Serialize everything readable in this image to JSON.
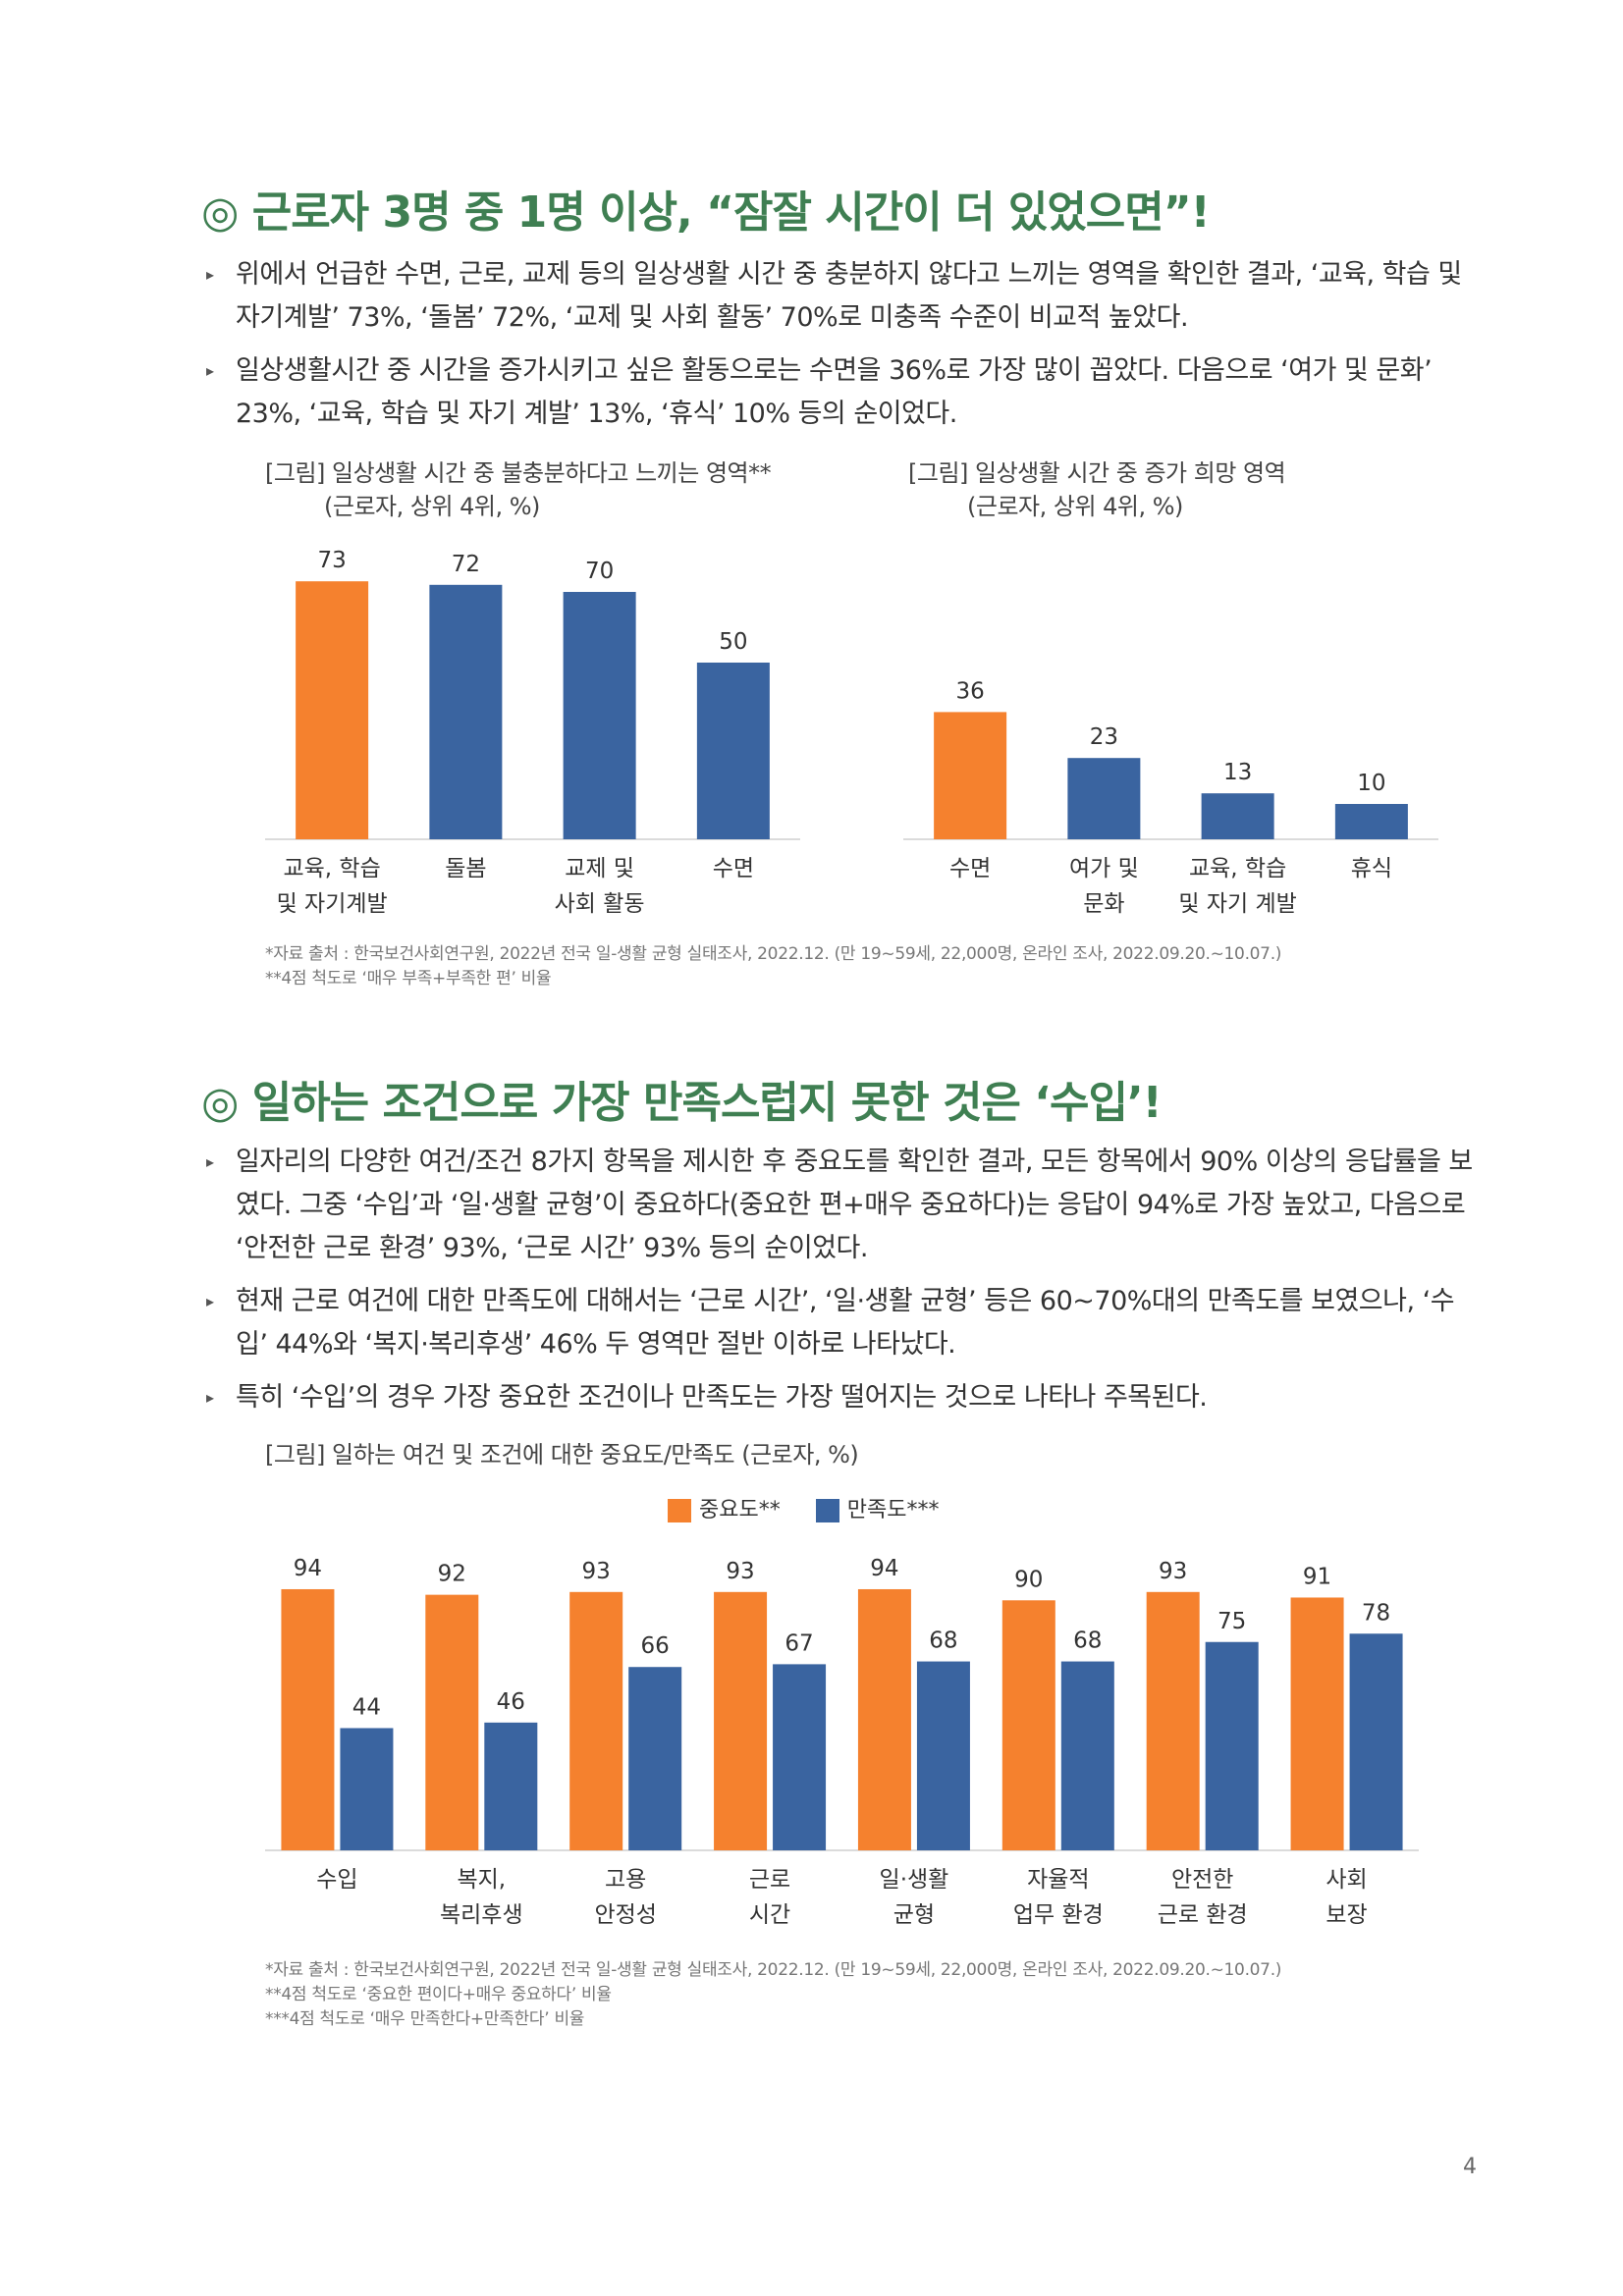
{
  "colors": {
    "heading": "#3f7f52",
    "orange": "#f5812e",
    "blue": "#3a64a0"
  },
  "section1": {
    "heading": "◎ 근로자 3명 중 1명 이상, “잠잘 시간이 더 있었으면”!",
    "bullets": [
      "위에서 언급한 수면, 근로, 교제 등의 일상생활 시간 중 충분하지 않다고 느끼는 영역을 확인한 결과, ‘교육, 학습 및 자기계발’ 73%, ‘돌봄’ 72%, ‘교제 및 사회 활동’ 70%로 미충족 수준이 비교적 높았다.",
      "일상생활시간 중 시간을 증가시키고 싶은 활동으로는 수면을 36%로 가장 많이 꼽았다. 다음으로 ‘여가 및 문화’ 23%, ‘교육, 학습 및 자기 계발’ 13%, ‘휴식’ 10% 등의 순이었다."
    ],
    "chart_left_caption": "[그림] 일상생활 시간 중 불충분하다고 느끼는 영역**",
    "chart_left_subcaption": "(근로자, 상위 4위, %)",
    "chart_right_caption": "[그림] 일상생활 시간 중 증가 희망 영역",
    "chart_right_subcaption": "(근로자, 상위 4위, %)",
    "notes": [
      "*자료 출처 : 한국보건사회연구원, 2022년 전국 일-생활 균형 실태조사, 2022.12. (만 19~59세, 22,000명, 온라인 조사, 2022.09.20.~10.07.)",
      "**4점 척도로 ‘매우 부족+부족한 편’ 비율"
    ]
  },
  "section2": {
    "heading": "◎ 일하는 조건으로 가장 만족스럽지 못한 것은 ‘수입’!",
    "bullets": [
      "일자리의 다양한 여건/조건 8가지 항목을 제시한 후 중요도를 확인한 결과, 모든 항목에서 90% 이상의 응답률을 보였다. 그중 ‘수입’과 ‘일·생활 균형’이 중요하다(중요한 편+매우 중요하다)는 응답이 94%로 가장 높았고, 다음으로 ‘안전한 근로 환경’ 93%, ‘근로 시간’ 93% 등의 순이었다.",
      "현재 근로 여건에 대한 만족도에 대해서는 ‘근로 시간’, ‘일·생활 균형’ 등은 60~70%대의 만족도를 보였으나, ‘수입’ 44%와 ‘복지·복리후생’ 46% 두 영역만 절반 이하로 나타났다.",
      "특히 ‘수입’의 경우 가장 중요한 조건이나 만족도는 가장 떨어지는 것으로 나타나 주목된다."
    ],
    "chart_caption": "[그림] 일하는 여건 및 조건에 대한 중요도/만족도 (근로자, %)",
    "notes": [
      "*자료 출처 : 한국보건사회연구원, 2022년 전국 일-생활 균형 실태조사, 2022.12. (만 19~59세, 22,000명, 온라인 조사, 2022.09.20.~10.07.)",
      "**4점 척도로 ‘중요한 편이다+매우 중요하다’ 비율",
      "***4점 척도로 ‘매우 만족한다+만족한다’ 비율"
    ]
  },
  "page_number": "4",
  "chart_data": [
    {
      "type": "bar",
      "categories": [
        [
          "교육, 학습",
          "및 자기계발"
        ],
        [
          "돌봄"
        ],
        [
          "교제 및",
          "사회 활동"
        ],
        [
          "수면"
        ]
      ],
      "values": [
        73,
        72,
        70,
        50
      ],
      "bar_colors": [
        "#f5812e",
        "#3a64a0",
        "#3a64a0",
        "#3a64a0"
      ],
      "title": "[그림] 일상생활 시간 중 불충분하다고 느끼는 영역**",
      "ylim": [
        0,
        80
      ]
    },
    {
      "type": "bar",
      "categories": [
        [
          "수면"
        ],
        [
          "여가 및",
          "문화"
        ],
        [
          "교육, 학습",
          "및 자기 계발"
        ],
        [
          "휴식"
        ]
      ],
      "values": [
        36,
        23,
        13,
        10
      ],
      "bar_colors": [
        "#f5812e",
        "#3a64a0",
        "#3a64a0",
        "#3a64a0"
      ],
      "title": "[그림] 일상생활 시간 중 증가 희망 영역",
      "ylim": [
        0,
        80
      ]
    },
    {
      "type": "bar",
      "categories": [
        [
          "수입"
        ],
        [
          "복지,",
          "복리후생"
        ],
        [
          "고용",
          "안정성"
        ],
        [
          "근로",
          "시간"
        ],
        [
          "일·생활",
          "균형"
        ],
        [
          "자율적",
          "업무 환경"
        ],
        [
          "안전한",
          "근로 환경"
        ],
        [
          "사회",
          "보장"
        ]
      ],
      "series": [
        {
          "name": "중요도**",
          "color": "#f5812e",
          "values": [
            94,
            92,
            93,
            93,
            94,
            90,
            93,
            91
          ]
        },
        {
          "name": "만족도***",
          "color": "#3a64a0",
          "values": [
            44,
            46,
            66,
            67,
            68,
            68,
            75,
            78
          ]
        }
      ],
      "title": "[그림] 일하는 여건 및 조건에 대한 중요도/만족도 (근로자, %)",
      "ylim": [
        0,
        100
      ],
      "legend": "top-center"
    }
  ]
}
